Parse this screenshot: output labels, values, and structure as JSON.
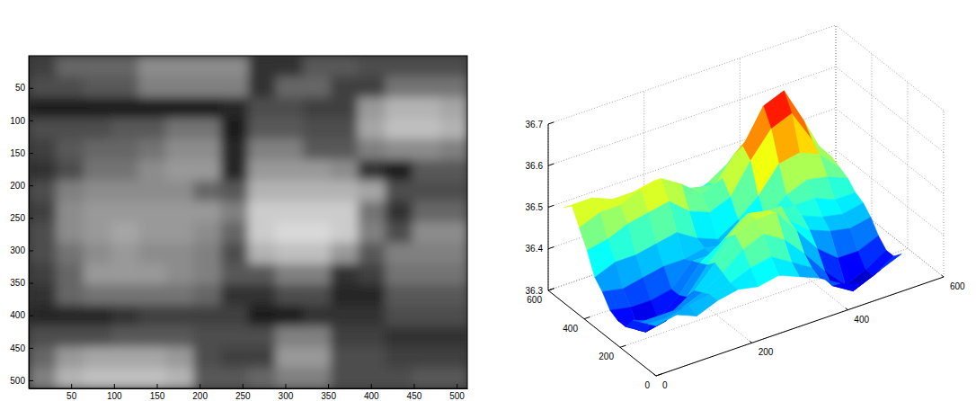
{
  "chart_data": [
    {
      "type": "heatmap",
      "xlim": [
        0.5,
        512.5
      ],
      "ylim": [
        512.5,
        0.5
      ],
      "xticks": [
        50,
        100,
        150,
        200,
        250,
        300,
        350,
        400,
        450,
        500
      ],
      "yticks": [
        50,
        100,
        150,
        200,
        250,
        300,
        350,
        400,
        450,
        500
      ],
      "color_range": [
        0,
        1
      ],
      "cells": [
        [
          0.25,
          0.4,
          0.4,
          0.4,
          0.55,
          0.55,
          0.55,
          0.55,
          0.2,
          0.2,
          0.35,
          0.35,
          0.3,
          0.3,
          0.3,
          0.3
        ],
        [
          0.3,
          0.3,
          0.35,
          0.35,
          0.5,
          0.5,
          0.5,
          0.5,
          0.2,
          0.4,
          0.4,
          0.25,
          0.25,
          0.45,
          0.45,
          0.45
        ],
        [
          0.1,
          0.1,
          0.1,
          0.1,
          0.1,
          0.1,
          0.1,
          0.15,
          0.3,
          0.3,
          0.25,
          0.25,
          0.6,
          0.7,
          0.7,
          0.65
        ],
        [
          0.3,
          0.3,
          0.3,
          0.35,
          0.35,
          0.45,
          0.45,
          0.1,
          0.35,
          0.35,
          0.3,
          0.3,
          0.65,
          0.75,
          0.75,
          0.7
        ],
        [
          0.25,
          0.35,
          0.4,
          0.4,
          0.45,
          0.55,
          0.55,
          0.15,
          0.5,
          0.5,
          0.35,
          0.35,
          0.5,
          0.55,
          0.55,
          0.5
        ],
        [
          0.2,
          0.3,
          0.45,
          0.45,
          0.55,
          0.6,
          0.6,
          0.15,
          0.6,
          0.6,
          0.6,
          0.55,
          0.2,
          0.1,
          0.35,
          0.35
        ],
        [
          0.3,
          0.5,
          0.55,
          0.55,
          0.55,
          0.55,
          0.4,
          0.35,
          0.7,
          0.7,
          0.7,
          0.7,
          0.65,
          0.3,
          0.3,
          0.3
        ],
        [
          0.25,
          0.55,
          0.6,
          0.6,
          0.6,
          0.6,
          0.6,
          0.5,
          0.8,
          0.8,
          0.8,
          0.8,
          0.45,
          0.2,
          0.4,
          0.4
        ],
        [
          0.3,
          0.55,
          0.6,
          0.65,
          0.6,
          0.6,
          0.55,
          0.4,
          0.8,
          0.85,
          0.85,
          0.8,
          0.5,
          0.3,
          0.55,
          0.55
        ],
        [
          0.3,
          0.45,
          0.55,
          0.6,
          0.55,
          0.55,
          0.5,
          0.3,
          0.7,
          0.75,
          0.75,
          0.6,
          0.35,
          0.5,
          0.5,
          0.5
        ],
        [
          0.25,
          0.4,
          0.6,
          0.6,
          0.6,
          0.55,
          0.5,
          0.35,
          0.35,
          0.5,
          0.5,
          0.2,
          0.25,
          0.45,
          0.45,
          0.45
        ],
        [
          0.2,
          0.4,
          0.45,
          0.45,
          0.45,
          0.45,
          0.4,
          0.2,
          0.2,
          0.3,
          0.3,
          0.15,
          0.15,
          0.35,
          0.35,
          0.35
        ],
        [
          0.15,
          0.15,
          0.15,
          0.2,
          0.25,
          0.25,
          0.25,
          0.25,
          0.1,
          0.1,
          0.2,
          0.2,
          0.2,
          0.3,
          0.3,
          0.3
        ],
        [
          0.3,
          0.3,
          0.3,
          0.35,
          0.35,
          0.35,
          0.3,
          0.3,
          0.3,
          0.5,
          0.5,
          0.25,
          0.25,
          0.2,
          0.2,
          0.2
        ],
        [
          0.4,
          0.6,
          0.65,
          0.65,
          0.65,
          0.6,
          0.3,
          0.25,
          0.25,
          0.6,
          0.6,
          0.3,
          0.3,
          0.25,
          0.25,
          0.25
        ],
        [
          0.5,
          0.7,
          0.75,
          0.75,
          0.75,
          0.7,
          0.35,
          0.35,
          0.4,
          0.5,
          0.5,
          0.3,
          0.3,
          0.3,
          0.35,
          0.35
        ]
      ]
    },
    {
      "type": "surface",
      "xlim": [
        0,
        600
      ],
      "ylim": [
        0,
        600
      ],
      "zlim": [
        36.3,
        36.7
      ],
      "xticks": [
        0,
        200,
        400,
        600
      ],
      "yticks": [
        0,
        200,
        400,
        600
      ],
      "zticks": [
        36.3,
        36.4,
        36.5,
        36.6,
        36.7
      ],
      "x": [
        0,
        43,
        85,
        128,
        171,
        213,
        256,
        299,
        341,
        384,
        427,
        469,
        512
      ],
      "y": [
        0,
        43,
        85,
        128,
        171,
        213,
        256,
        299,
        341,
        384,
        427,
        469,
        512
      ],
      "z": [
        [
          36.42,
          36.43,
          36.41,
          36.43,
          36.44,
          36.43,
          36.44,
          36.42,
          36.4,
          36.37,
          36.35,
          36.37,
          36.39
        ],
        [
          36.41,
          36.41,
          36.42,
          36.43,
          36.44,
          36.46,
          36.47,
          36.44,
          36.41,
          36.35,
          36.32,
          36.34,
          36.37
        ],
        [
          36.4,
          36.4,
          36.4,
          36.42,
          36.45,
          36.49,
          36.51,
          36.48,
          36.43,
          36.37,
          36.32,
          36.34,
          36.37
        ],
        [
          36.39,
          36.37,
          36.38,
          36.41,
          36.46,
          36.51,
          36.53,
          36.53,
          36.47,
          36.41,
          36.37,
          36.37,
          36.39
        ],
        [
          36.36,
          36.33,
          36.34,
          36.38,
          36.44,
          36.49,
          36.53,
          36.52,
          36.48,
          36.44,
          36.42,
          36.41,
          36.42
        ],
        [
          36.36,
          36.32,
          36.33,
          36.37,
          36.43,
          36.46,
          36.5,
          36.5,
          36.5,
          36.46,
          36.44,
          36.43,
          36.44
        ],
        [
          36.37,
          36.36,
          36.36,
          36.37,
          36.42,
          36.42,
          36.45,
          36.45,
          36.46,
          36.47,
          36.47,
          36.45,
          36.45
        ],
        [
          36.4,
          36.39,
          36.4,
          36.41,
          36.41,
          36.42,
          36.41,
          36.44,
          36.44,
          36.48,
          36.5,
          36.49,
          36.47
        ],
        [
          36.42,
          36.44,
          36.44,
          36.45,
          36.46,
          36.43,
          36.41,
          36.44,
          36.48,
          36.54,
          36.55,
          36.53,
          36.48
        ],
        [
          36.47,
          36.48,
          36.5,
          36.51,
          36.52,
          36.48,
          36.46,
          36.48,
          36.55,
          36.61,
          36.63,
          36.55,
          36.49
        ],
        [
          36.51,
          36.53,
          36.53,
          36.55,
          36.56,
          36.53,
          36.49,
          36.51,
          36.57,
          36.65,
          36.67,
          36.58,
          36.48
        ],
        [
          36.55,
          36.55,
          36.53,
          36.53,
          36.54,
          36.5,
          36.49,
          36.48,
          36.54,
          36.58,
          36.58,
          36.54,
          36.47
        ],
        [
          36.53,
          36.52,
          36.5,
          36.48,
          36.49,
          36.47,
          36.45,
          36.47,
          36.5,
          36.5,
          36.5,
          36.47,
          36.45
        ]
      ]
    }
  ]
}
